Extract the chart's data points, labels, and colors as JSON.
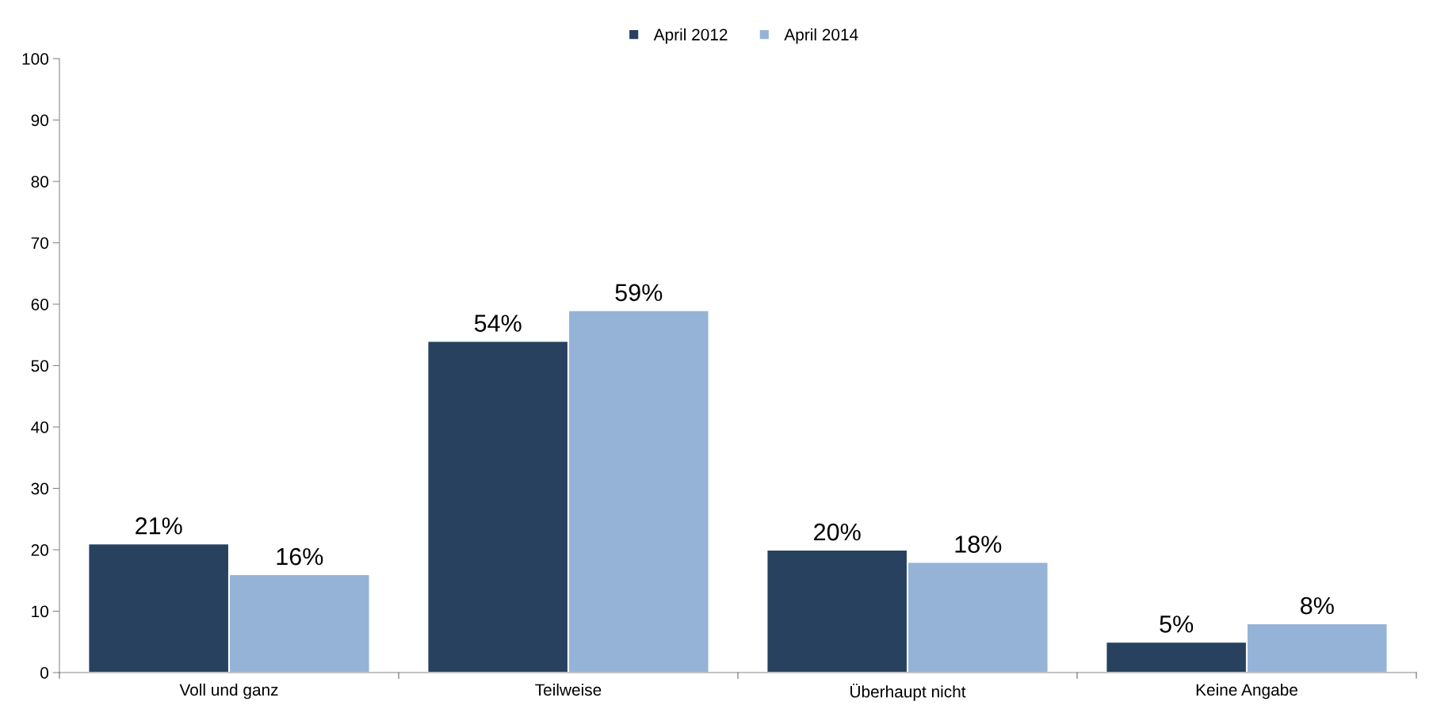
{
  "chart_data": {
    "type": "bar",
    "categories": [
      "Voll und ganz",
      "Teilweise",
      "Überhaupt nicht",
      "Keine Angabe"
    ],
    "series": [
      {
        "name": "April 2012",
        "color": "#27415f",
        "values": [
          21,
          54,
          20,
          5
        ],
        "value_labels": [
          "21%",
          "54%",
          "20%",
          "5%"
        ]
      },
      {
        "name": "April 2014",
        "color": "#95b3d7",
        "values": [
          16,
          59,
          18,
          8
        ],
        "value_labels": [
          "16%",
          "59%",
          "18%",
          "8%"
        ]
      }
    ],
    "ylim": [
      0,
      100
    ],
    "yticks": [
      0,
      10,
      20,
      30,
      40,
      50,
      60,
      70,
      80,
      90,
      100
    ],
    "grid": false,
    "legend": "top"
  }
}
